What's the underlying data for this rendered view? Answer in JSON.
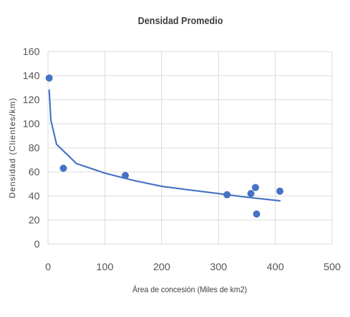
{
  "chart_data": {
    "type": "scatter",
    "title": "Densidad Promedio",
    "xlabel": "Área de concesión (Miles de km2)",
    "ylabel": "Densidad (Clientes/km)",
    "xlim": [
      0,
      500
    ],
    "ylim": [
      0,
      160
    ],
    "xticks": [
      "0",
      "100",
      "200",
      "300",
      "400",
      "500"
    ],
    "yticks": [
      "0",
      "20",
      "40",
      "60",
      "80",
      "100",
      "120",
      "140",
      "160"
    ],
    "grid": true,
    "legend": "none",
    "colors": {
      "marker": "#4472c4",
      "trend": "#4472c4",
      "grid": "#d9d9d9",
      "text": "#595959"
    },
    "points": [
      {
        "x": 2,
        "y": 138
      },
      {
        "x": 27,
        "y": 63
      },
      {
        "x": 136,
        "y": 57
      },
      {
        "x": 315,
        "y": 41
      },
      {
        "x": 357,
        "y": 42
      },
      {
        "x": 365,
        "y": 47
      },
      {
        "x": 367,
        "y": 25
      },
      {
        "x": 408,
        "y": 44
      }
    ],
    "trendline": {
      "type": "power",
      "curve": [
        {
          "x": 2,
          "y": 128
        },
        {
          "x": 5,
          "y": 103
        },
        {
          "x": 15,
          "y": 83
        },
        {
          "x": 50,
          "y": 67
        },
        {
          "x": 100,
          "y": 59
        },
        {
          "x": 150,
          "y": 53
        },
        {
          "x": 200,
          "y": 48
        },
        {
          "x": 250,
          "y": 45
        },
        {
          "x": 300,
          "y": 42
        },
        {
          "x": 350,
          "y": 39
        },
        {
          "x": 408,
          "y": 36
        }
      ]
    }
  }
}
